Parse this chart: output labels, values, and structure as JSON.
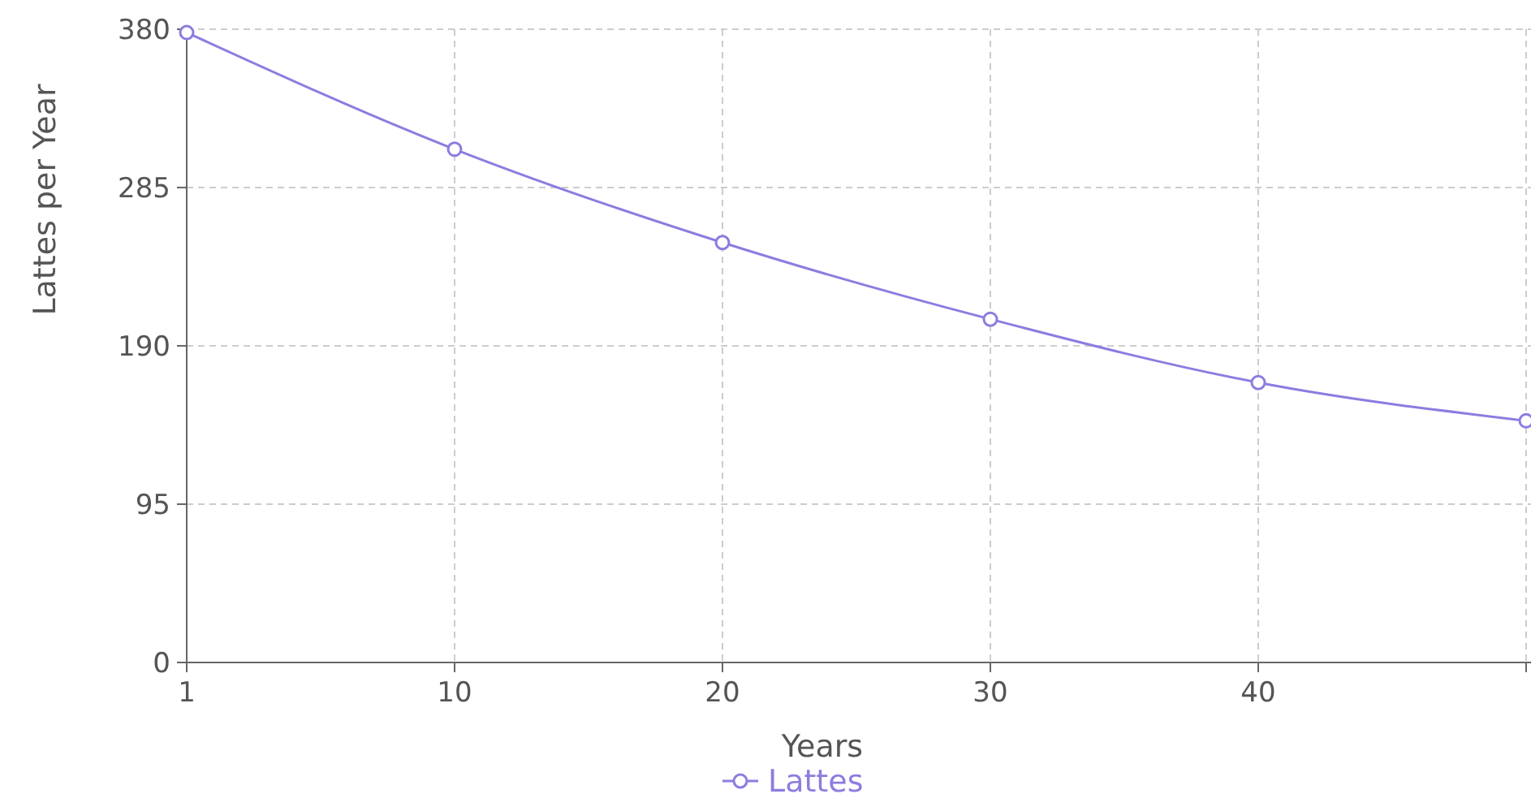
{
  "chart_data": {
    "type": "line",
    "xlabel": "Years",
    "ylabel": "Lattes per Year",
    "categories": [
      "1",
      "10",
      "20",
      "30",
      "40",
      null
    ],
    "series": [
      {
        "name": "Lattes",
        "color": "#8b7de0",
        "values": [
          378,
          308,
          252,
          206,
          168,
          145
        ]
      }
    ],
    "ylim": [
      0,
      380
    ],
    "yticks": [
      0,
      95,
      190,
      285,
      380
    ],
    "grid": true,
    "legend": "bottom",
    "marker": "circle",
    "line_style": "solid"
  }
}
